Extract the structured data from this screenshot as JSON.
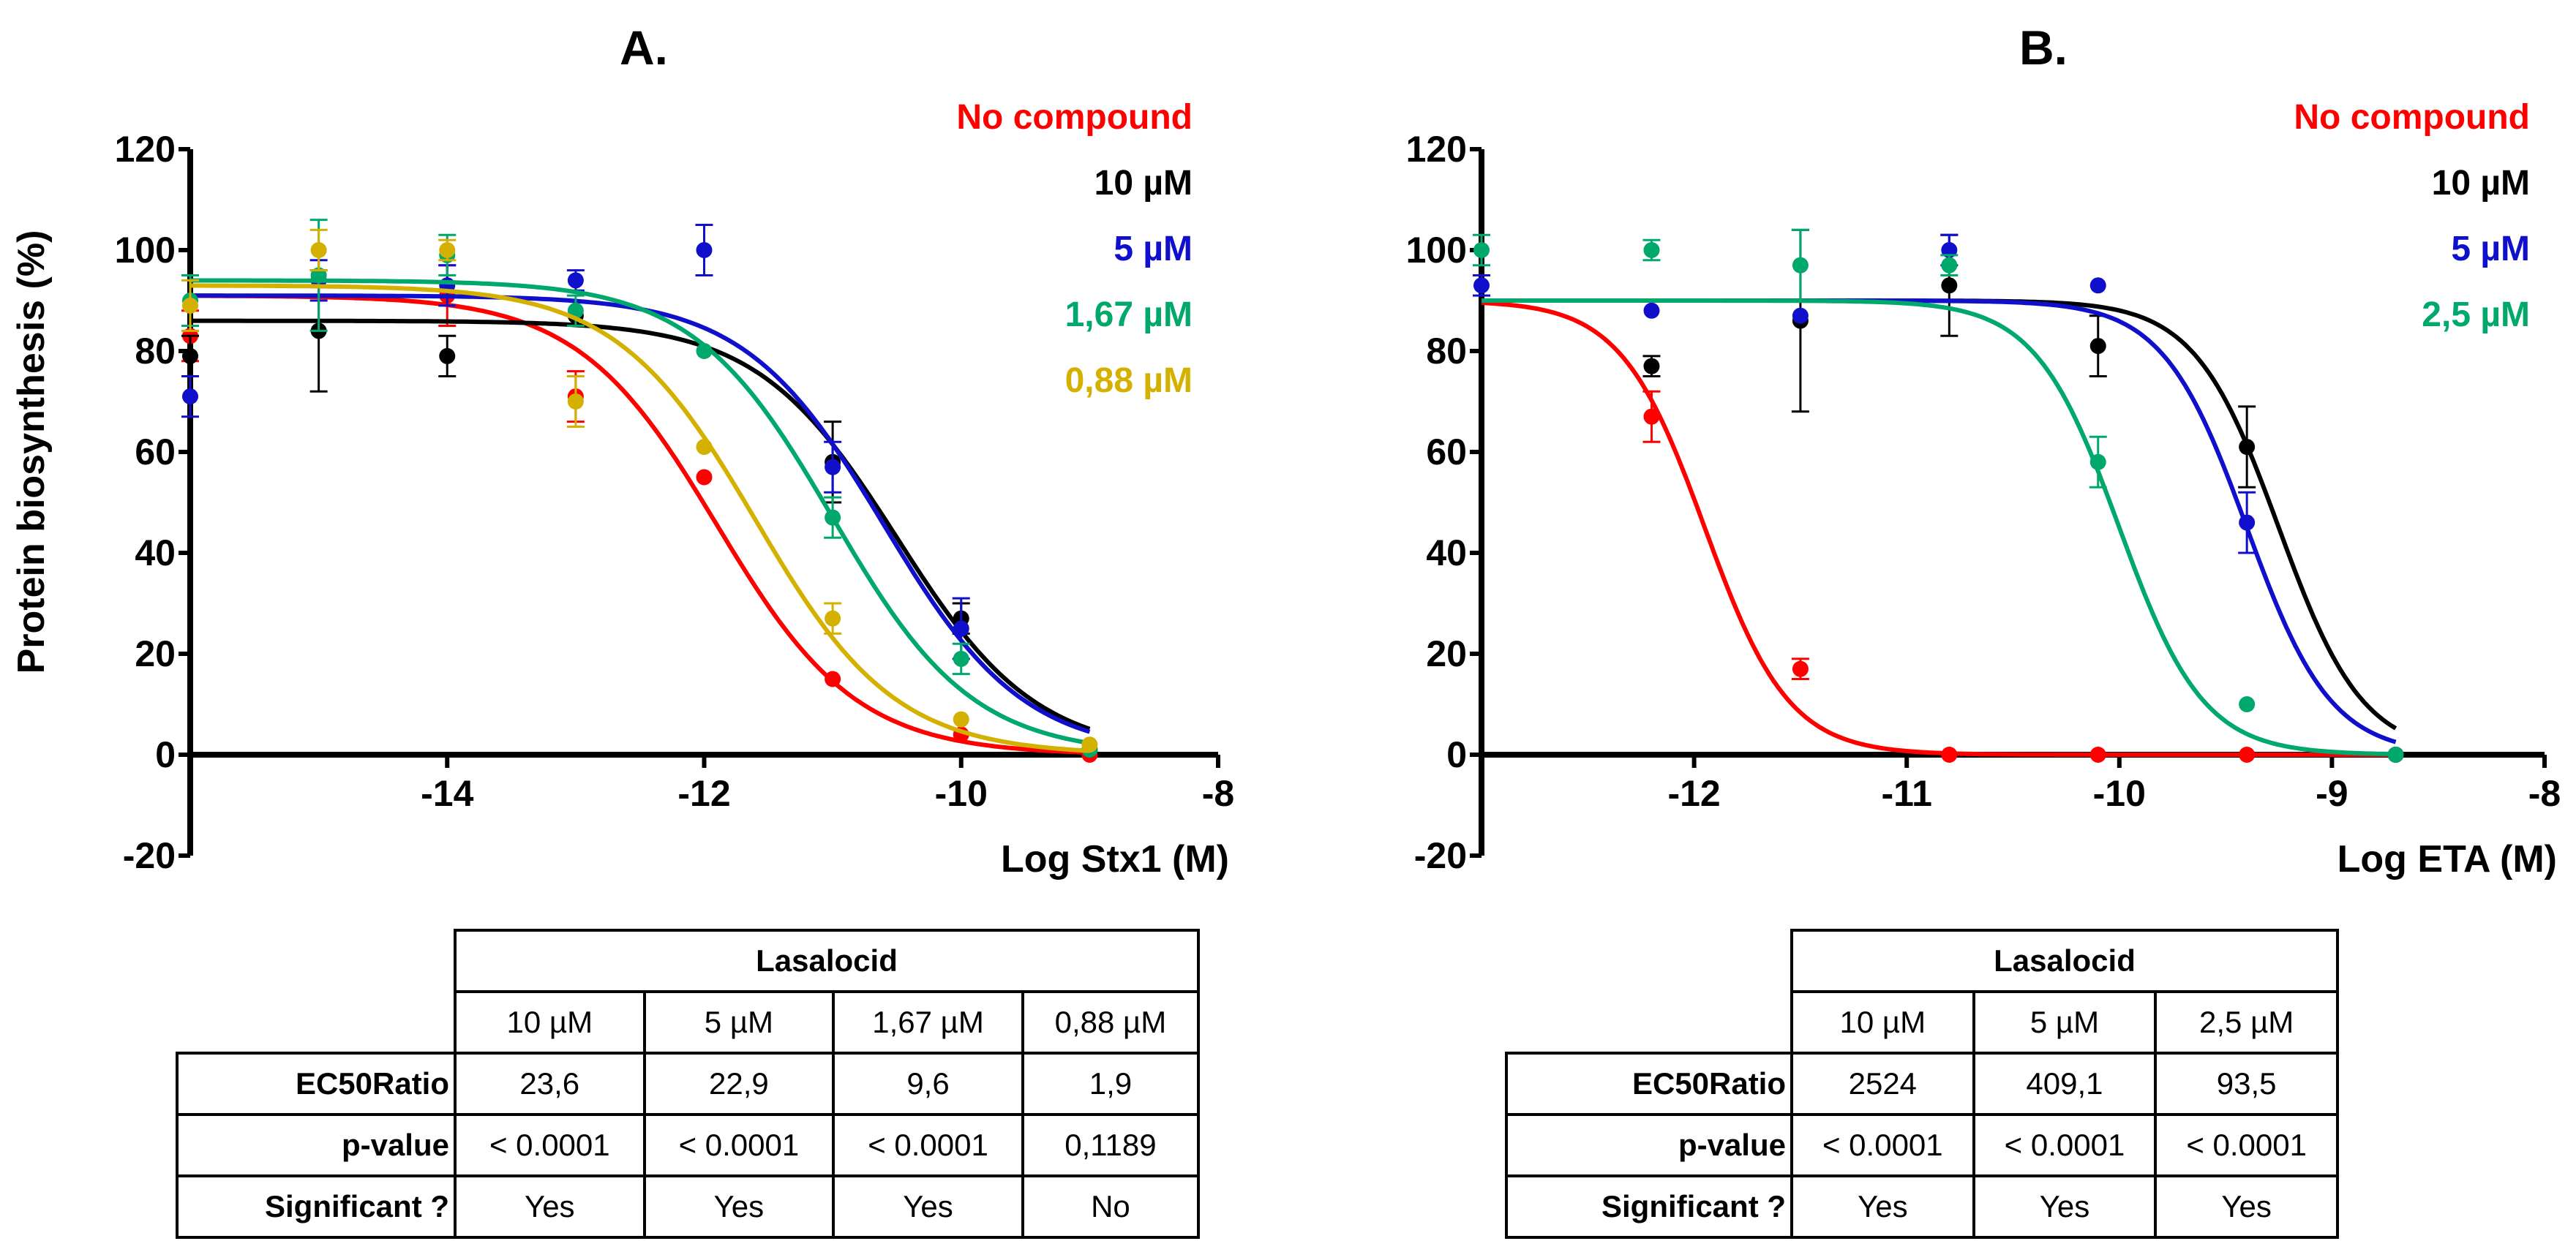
{
  "chart_data": [
    {
      "type": "line",
      "panel_label": "A.",
      "xlabel": "Log Stx1 (M)",
      "ylabel": "Protein biosynthesis (%)",
      "xlim": [
        -16,
        -8
      ],
      "ylim": [
        -20,
        120
      ],
      "xticks": [
        -14,
        -12,
        -10,
        -8
      ],
      "xtick_labels": [
        "-14",
        "-12",
        "-10",
        "-8"
      ],
      "yticks": [
        -20,
        0,
        20,
        40,
        60,
        80,
        100,
        120
      ],
      "ytick_labels": [
        "-20",
        "0",
        "20",
        "40",
        "60",
        "80",
        "100",
        "120"
      ],
      "series": [
        {
          "name": "No compound",
          "color": "#ff0000",
          "fit": {
            "top": 91,
            "bottom": 0,
            "logec50": -11.9,
            "hill": 0.8
          },
          "points": [
            {
              "x": -16,
              "y": 83,
              "err": 5
            },
            {
              "x": -14,
              "y": 91,
              "err": 6
            },
            {
              "x": -13,
              "y": 71,
              "err": 5
            },
            {
              "x": -12,
              "y": 55,
              "err": 0
            },
            {
              "x": -11,
              "y": 15,
              "err": 0
            },
            {
              "x": -10,
              "y": 4,
              "err": 0
            },
            {
              "x": -9,
              "y": 0,
              "err": 0
            }
          ]
        },
        {
          "name": "10 µM",
          "color": "#000000",
          "fit": {
            "top": 86,
            "bottom": 0,
            "logec50": -10.5,
            "hill": 0.8
          },
          "points": [
            {
              "x": -16,
              "y": 79,
              "err": 4
            },
            {
              "x": -15,
              "y": 84,
              "err": 12
            },
            {
              "x": -14,
              "y": 79,
              "err": 4
            },
            {
              "x": -13,
              "y": 87,
              "err": 0
            },
            {
              "x": -11,
              "y": 58,
              "err": 8
            },
            {
              "x": -10,
              "y": 27,
              "err": 3
            },
            {
              "x": -9,
              "y": 1,
              "err": 0
            }
          ]
        },
        {
          "name": "5 µM",
          "color": "#1010cc",
          "fit": {
            "top": 91,
            "bottom": 0,
            "logec50": -10.6,
            "hill": 0.8
          },
          "points": [
            {
              "x": -16,
              "y": 71,
              "err": 4
            },
            {
              "x": -15,
              "y": 94,
              "err": 4
            },
            {
              "x": -14,
              "y": 93,
              "err": 4
            },
            {
              "x": -13,
              "y": 94,
              "err": 2
            },
            {
              "x": -12,
              "y": 100,
              "err": 5
            },
            {
              "x": -11,
              "y": 57,
              "err": 5
            },
            {
              "x": -10,
              "y": 25,
              "err": 6
            },
            {
              "x": -9,
              "y": 1,
              "err": 0
            }
          ]
        },
        {
          "name": "1,67 µM",
          "color": "#00a86b",
          "fit": {
            "top": 94,
            "bottom": 0,
            "logec50": -11.0,
            "hill": 0.8
          },
          "points": [
            {
              "x": -16,
              "y": 90,
              "err": 5
            },
            {
              "x": -15,
              "y": 95,
              "err": 11
            },
            {
              "x": -14,
              "y": 99,
              "err": 4
            },
            {
              "x": -13,
              "y": 88,
              "err": 3
            },
            {
              "x": -12,
              "y": 80,
              "err": 0
            },
            {
              "x": -11,
              "y": 47,
              "err": 4
            },
            {
              "x": -10,
              "y": 19,
              "err": 3
            },
            {
              "x": -9,
              "y": 1,
              "err": 0
            }
          ]
        },
        {
          "name": "0,88 µM",
          "color": "#d4b000",
          "fit": {
            "top": 93,
            "bottom": 0,
            "logec50": -11.6,
            "hill": 0.8
          },
          "points": [
            {
              "x": -16,
              "y": 89,
              "err": 5
            },
            {
              "x": -15,
              "y": 100,
              "err": 4
            },
            {
              "x": -14,
              "y": 100,
              "err": 2
            },
            {
              "x": -13,
              "y": 70,
              "err": 5
            },
            {
              "x": -12,
              "y": 61,
              "err": 0
            },
            {
              "x": -11,
              "y": 27,
              "err": 3
            },
            {
              "x": -10,
              "y": 7,
              "err": 0
            },
            {
              "x": -9,
              "y": 2,
              "err": 0
            }
          ]
        }
      ],
      "table": {
        "group_header": "Lasalocid",
        "columns": [
          "10 µM",
          "5 µM",
          "1,67 µM",
          "0,88 µM"
        ],
        "rows": [
          {
            "label": "EC50Ratio",
            "values": [
              "23,6",
              "22,9",
              "9,6",
              "1,9"
            ]
          },
          {
            "label": "p-value",
            "values": [
              "< 0.0001",
              "< 0.0001",
              "< 0.0001",
              "0,1189"
            ]
          },
          {
            "label": "Significant ?",
            "values": [
              "Yes",
              "Yes",
              "Yes",
              "No"
            ]
          }
        ]
      }
    },
    {
      "type": "line",
      "panel_label": "B.",
      "xlabel": "Log ETA (M)",
      "ylabel": "",
      "xlim": [
        -13,
        -8
      ],
      "ylim": [
        -20,
        120
      ],
      "xticks": [
        -12,
        -11,
        -10,
        -9,
        -8
      ],
      "xtick_labels": [
        "-12",
        "-11",
        "-10",
        "-9",
        "-8"
      ],
      "yticks": [
        -20,
        0,
        20,
        40,
        60,
        80,
        100,
        120
      ],
      "ytick_labels": [
        "-20",
        "0",
        "20",
        "40",
        "60",
        "80",
        "100",
        "120"
      ],
      "series": [
        {
          "name": "No compound",
          "color": "#ff0000",
          "fit": {
            "top": 90,
            "bottom": 0,
            "logec50": -11.95,
            "hill": 2.2
          },
          "points": [
            {
              "x": -12.2,
              "y": 67,
              "err": 5
            },
            {
              "x": -11.5,
              "y": 17,
              "err": 2
            },
            {
              "x": -10.8,
              "y": 0,
              "err": 0
            },
            {
              "x": -10.1,
              "y": 0,
              "err": 0
            },
            {
              "x": -9.4,
              "y": 0,
              "err": 0
            },
            {
              "x": -8.7,
              "y": 0,
              "err": 0
            }
          ]
        },
        {
          "name": "10 µM",
          "color": "#000000",
          "fit": {
            "top": 90,
            "bottom": 0,
            "logec50": -9.25,
            "hill": 2.2
          },
          "points": [
            {
              "x": -12.2,
              "y": 77,
              "err": 2
            },
            {
              "x": -11.5,
              "y": 86,
              "err": 18
            },
            {
              "x": -10.8,
              "y": 93,
              "err": 10
            },
            {
              "x": -10.1,
              "y": 81,
              "err": 6
            },
            {
              "x": -9.4,
              "y": 61,
              "err": 8
            },
            {
              "x": -8.7,
              "y": 0,
              "err": 0
            }
          ]
        },
        {
          "name": "5 µM",
          "color": "#1010cc",
          "fit": {
            "top": 90,
            "bottom": 0,
            "logec50": -9.4,
            "hill": 2.2
          },
          "points": [
            {
              "x": -13,
              "y": 93,
              "err": 2
            },
            {
              "x": -12.2,
              "y": 88,
              "err": 0
            },
            {
              "x": -11.5,
              "y": 87,
              "err": 0
            },
            {
              "x": -10.8,
              "y": 100,
              "err": 3
            },
            {
              "x": -10.1,
              "y": 93,
              "err": 0
            },
            {
              "x": -9.4,
              "y": 46,
              "err": 6
            },
            {
              "x": -8.7,
              "y": 0,
              "err": 0
            }
          ]
        },
        {
          "name": "2,5 µM",
          "color": "#00a86b",
          "fit": {
            "top": 90,
            "bottom": 0,
            "logec50": -10.0,
            "hill": 2.2
          },
          "points": [
            {
              "x": -13,
              "y": 100,
              "err": 3
            },
            {
              "x": -12.2,
              "y": 100,
              "err": 2
            },
            {
              "x": -11.5,
              "y": 97,
              "err": 7
            },
            {
              "x": -10.8,
              "y": 97,
              "err": 2
            },
            {
              "x": -10.1,
              "y": 58,
              "err": 5
            },
            {
              "x": -9.4,
              "y": 10,
              "err": 0
            },
            {
              "x": -8.7,
              "y": 0,
              "err": 0
            }
          ]
        }
      ],
      "table": {
        "group_header": "Lasalocid",
        "columns": [
          "10 µM",
          "5 µM",
          "2,5 µM"
        ],
        "rows": [
          {
            "label": "EC50Ratio",
            "values": [
              "2524",
              "409,1",
              "93,5"
            ]
          },
          {
            "label": "p-value",
            "values": [
              "< 0.0001",
              "< 0.0001",
              "< 0.0001"
            ]
          },
          {
            "label": "Significant ?",
            "values": [
              "Yes",
              "Yes",
              "Yes"
            ]
          }
        ]
      }
    }
  ]
}
